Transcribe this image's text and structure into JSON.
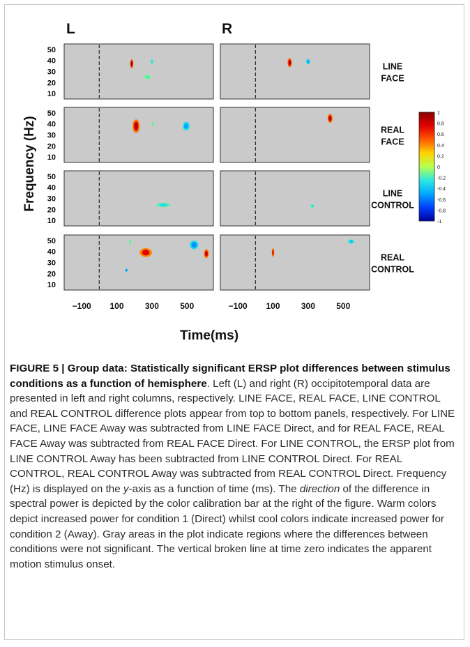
{
  "figure": {
    "column_labels": [
      "L",
      "R"
    ],
    "y_axis_label": "Frequency (Hz)",
    "x_axis_label": "Time(ms)",
    "y_ticks": [
      "50",
      "40",
      "30",
      "20",
      "10"
    ],
    "x_ticks": [
      "−100",
      "100",
      "300",
      "500"
    ],
    "row_labels": [
      [
        "LINE",
        "FACE"
      ],
      [
        "REAL",
        "FACE"
      ],
      [
        "LINE",
        "CONTROL"
      ],
      [
        "REAL",
        "CONTROL"
      ]
    ],
    "colorbar_ticks": [
      "1",
      "0.8",
      "0.6",
      "0.4",
      "0.2",
      "0",
      "-0.2",
      "-0.4",
      "-0.6",
      "-0.8",
      "-1"
    ],
    "background_color": "#cacaca",
    "colormap": [
      "#8b0000",
      "#e00000",
      "#ff5a00",
      "#ffd200",
      "#b8ff50",
      "#2ee8e0",
      "#00a8ff",
      "#0040ff",
      "#00009a"
    ]
  },
  "caption": {
    "label": "FIGURE 5 | ",
    "title": "Group data: Statistically significant ERSP plot differences between stimulus conditions as a function of hemisphere",
    "p1": ". Left (L) and right (R) occipitotemporal data are presented in left and right columns, respectively. LINE FACE, REAL FACE, LINE CONTROL and REAL CONTROL difference plots appear from top to bottom panels, respectively. For LINE FACE, LINE FACE Away was subtracted from LINE FACE Direct, and for REAL FACE, REAL FACE Away was subtracted from REAL FACE Direct. For LINE CONTROL, the ERSP plot from LINE CONTROL Away has been subtracted from LINE CONTROL Direct. For REAL CONTROL, REAL CONTROL Away was subtracted from REAL CONTROL Direct. Frequency (Hz) is displayed on the ",
    "y_word": "y",
    "p2": "-axis as a function of time (ms). The ",
    "direction_word": "direction",
    "p3": " of the difference in spectral power is depicted by the color calibration bar at the right of the figure. Warm colors depict increased power for condition 1 (Direct) whilst cool colors indicate increased power for condition 2 (Away). Gray areas in the plot indicate regions where the differences between conditions were not significant. The vertical broken line at time zero indicates the apparent motion stimulus onset."
  },
  "chart_data": {
    "type": "heatmap",
    "xlabel": "Time(ms)",
    "ylabel": "Frequency (Hz)",
    "xlim": [
      -200,
      650
    ],
    "ylim": [
      5,
      55
    ],
    "colorbar_range": [
      -1,
      1
    ],
    "panels": [
      {
        "row": "LINE FACE",
        "column": "L",
        "blobs": [
          {
            "t": 185,
            "f": 37,
            "dt": 18,
            "df": 8,
            "v": 0.95
          },
          {
            "t": 300,
            "f": 39,
            "dt": 14,
            "df": 5,
            "v": -0.3
          },
          {
            "t": 275,
            "f": 25,
            "dt": 40,
            "df": 4,
            "v": -0.2
          }
        ]
      },
      {
        "row": "LINE FACE",
        "column": "R",
        "blobs": [
          {
            "t": 195,
            "f": 38,
            "dt": 24,
            "df": 8,
            "v": 0.9
          },
          {
            "t": 300,
            "f": 39,
            "dt": 22,
            "df": 5,
            "v": -0.5
          }
        ]
      },
      {
        "row": "REAL FACE",
        "column": "L",
        "blobs": [
          {
            "t": 210,
            "f": 38,
            "dt": 40,
            "df": 12,
            "v": 0.85
          },
          {
            "t": 305,
            "f": 40,
            "dt": 14,
            "df": 4,
            "v": -0.2
          },
          {
            "t": 495,
            "f": 38,
            "dt": 40,
            "df": 8,
            "v": -0.5
          }
        ]
      },
      {
        "row": "REAL FACE",
        "column": "R",
        "blobs": [
          {
            "t": 425,
            "f": 45,
            "dt": 28,
            "df": 8,
            "v": 0.85
          }
        ]
      },
      {
        "row": "LINE CONTROL",
        "column": "L",
        "blobs": [
          {
            "t": 365,
            "f": 24,
            "dt": 80,
            "df": 4,
            "v": -0.3
          }
        ]
      },
      {
        "row": "LINE CONTROL",
        "column": "R",
        "blobs": [
          {
            "t": 325,
            "f": 23,
            "dt": 24,
            "df": 3,
            "v": -0.3
          }
        ]
      },
      {
        "row": "REAL CONTROL",
        "column": "L",
        "blobs": [
          {
            "t": 175,
            "f": 49,
            "dt": 14,
            "df": 4,
            "v": -0.2
          },
          {
            "t": 265,
            "f": 39,
            "dt": 70,
            "df": 8,
            "v": 0.75
          },
          {
            "t": 155,
            "f": 23,
            "dt": 14,
            "df": 3,
            "v": -0.6
          },
          {
            "t": 540,
            "f": 46,
            "dt": 50,
            "df": 8,
            "v": -0.55
          },
          {
            "t": 610,
            "f": 38,
            "dt": 28,
            "df": 8,
            "v": 0.8
          }
        ]
      },
      {
        "row": "REAL CONTROL",
        "column": "R",
        "blobs": [
          {
            "t": 100,
            "f": 39,
            "dt": 14,
            "df": 8,
            "v": 0.8
          },
          {
            "t": 545,
            "f": 49,
            "dt": 36,
            "df": 4,
            "v": -0.4
          }
        ]
      }
    ]
  }
}
